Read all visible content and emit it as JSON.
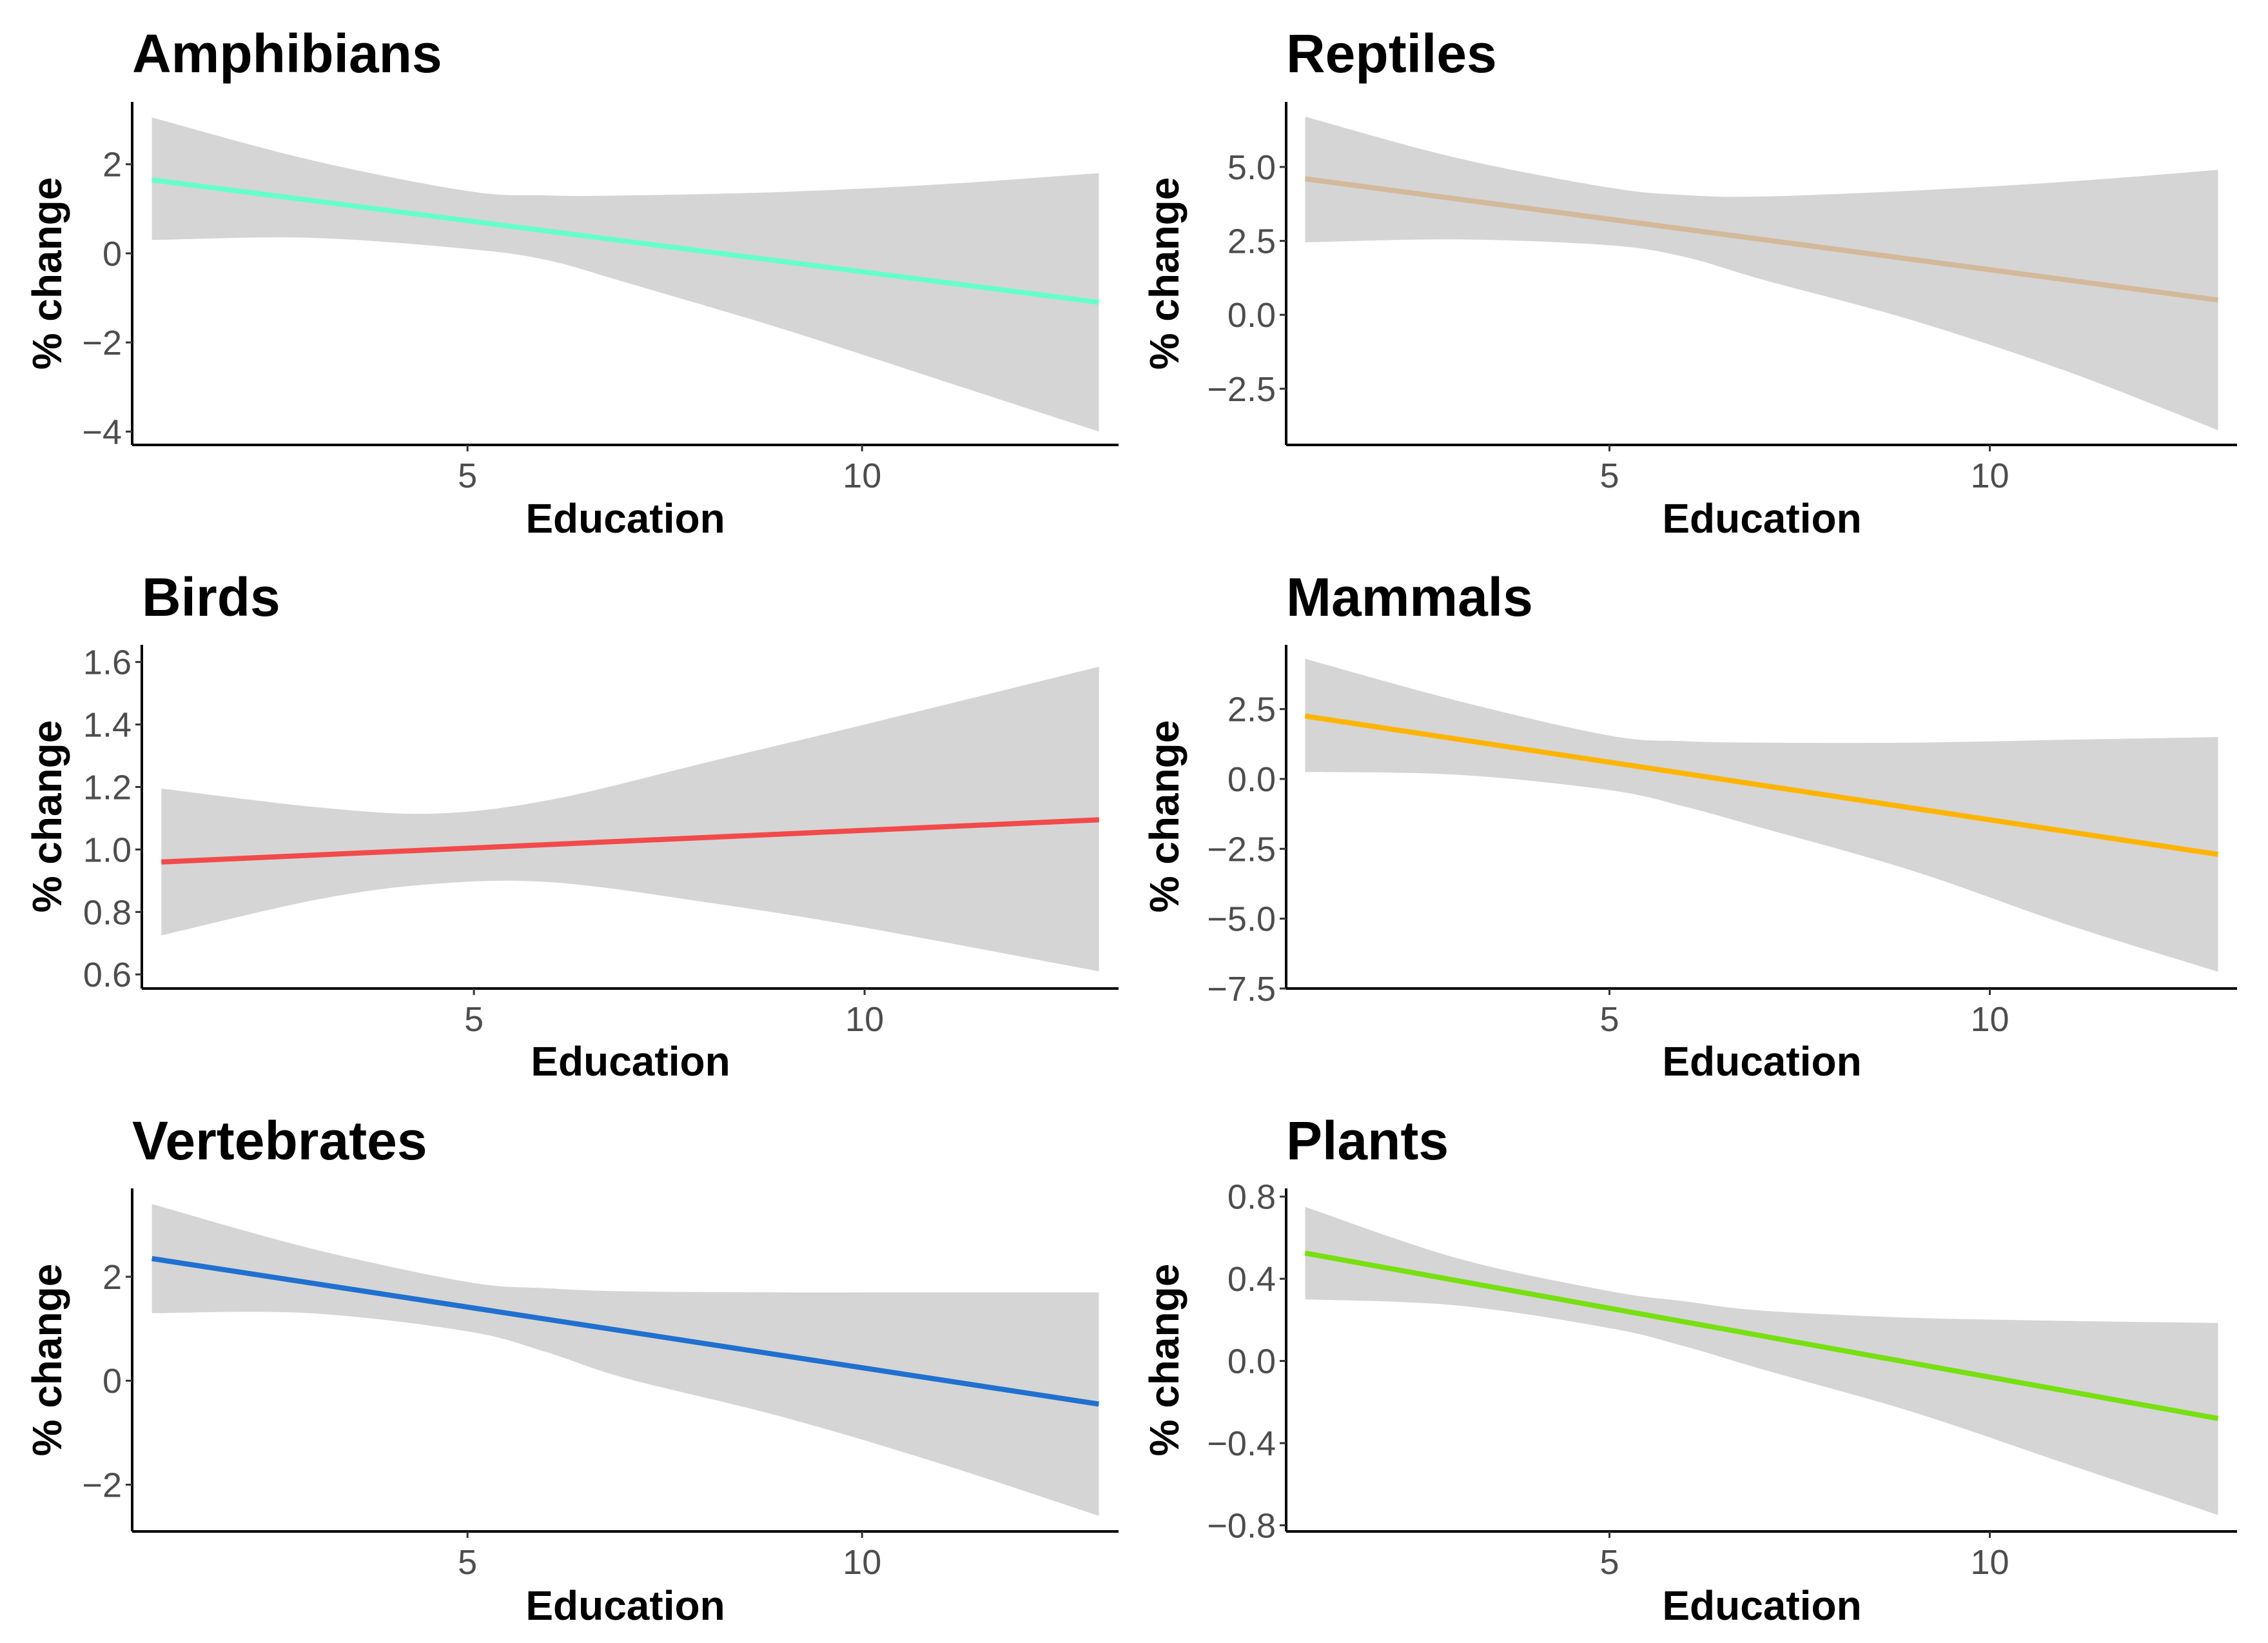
{
  "ribbon_color": "#d5d5d5",
  "chart_data": [
    {
      "type": "line",
      "title": "Amphibians",
      "xlabel": "Education",
      "ylabel": "% change",
      "xlim": [
        0.75,
        13.25
      ],
      "ylim": [
        -4.3,
        3.4
      ],
      "xticks": [
        5,
        10
      ],
      "yticks": [
        {
          "value": 2,
          "label": "2"
        },
        {
          "value": 0,
          "label": "0"
        },
        {
          "value": -2,
          "label": "−2"
        },
        {
          "value": -4,
          "label": "−4"
        }
      ],
      "color": "#66ffcc",
      "fit": {
        "x": [
          1,
          13
        ],
        "y": [
          1.65,
          -1.1
        ]
      },
      "ci": {
        "x": [
          1,
          3,
          5,
          6,
          7,
          9,
          11,
          13
        ],
        "upper": [
          3.05,
          2.1,
          1.4,
          1.3,
          1.3,
          1.38,
          1.55,
          1.8
        ],
        "lower": [
          0.3,
          0.35,
          0.1,
          -0.15,
          -0.65,
          -1.7,
          -2.85,
          -4.0
        ]
      }
    },
    {
      "type": "line",
      "title": "Reptiles",
      "xlabel": "Education",
      "ylabel": "% change",
      "xlim": [
        0.75,
        13.25
      ],
      "ylim": [
        -4.4,
        7.2
      ],
      "xticks": [
        5,
        10
      ],
      "yticks": [
        {
          "value": 5,
          "label": "5.0"
        },
        {
          "value": 2.5,
          "label": "2.5"
        },
        {
          "value": 0,
          "label": "0.0"
        },
        {
          "value": -2.5,
          "label": "−2.5"
        }
      ],
      "color": "#d4b89a",
      "fit": {
        "x": [
          1,
          13
        ],
        "y": [
          4.6,
          0.5
        ]
      },
      "ci": {
        "x": [
          1,
          3,
          5,
          6,
          7,
          9,
          11,
          13
        ],
        "upper": [
          6.7,
          5.3,
          4.3,
          4.05,
          4.0,
          4.2,
          4.5,
          4.9
        ],
        "lower": [
          2.45,
          2.55,
          2.35,
          1.95,
          1.2,
          -0.2,
          -1.9,
          -3.9
        ]
      }
    },
    {
      "type": "line",
      "title": "Birds",
      "xlabel": "Education",
      "ylabel": "% change",
      "xlim": [
        0.75,
        13.25
      ],
      "ylim": [
        0.555,
        1.655
      ],
      "xticks": [
        5,
        10
      ],
      "yticks": [
        {
          "value": 1.6,
          "label": "1.6"
        },
        {
          "value": 1.4,
          "label": "1.4"
        },
        {
          "value": 1.2,
          "label": "1.2"
        },
        {
          "value": 1.0,
          "label": "1.0"
        },
        {
          "value": 0.8,
          "label": "0.8"
        },
        {
          "value": 0.6,
          "label": "0.6"
        }
      ],
      "color": "#f24a4a",
      "fit": {
        "x": [
          1,
          13
        ],
        "y": [
          0.96,
          1.095
        ]
      },
      "ci": {
        "x": [
          1,
          3,
          4.5,
          6,
          8,
          10,
          13
        ],
        "upper": [
          1.195,
          1.135,
          1.115,
          1.16,
          1.28,
          1.4,
          1.585
        ],
        "lower": [
          0.725,
          0.84,
          0.89,
          0.895,
          0.83,
          0.75,
          0.61
        ]
      }
    },
    {
      "type": "line",
      "title": "Mammals",
      "xlabel": "Education",
      "ylabel": "% change",
      "xlim": [
        0.75,
        13.25
      ],
      "ylim": [
        -7.5,
        4.8
      ],
      "xticks": [
        5,
        10
      ],
      "yticks": [
        {
          "value": 2.5,
          "label": "2.5"
        },
        {
          "value": 0,
          "label": "0.0"
        },
        {
          "value": -2.5,
          "label": "−2.5"
        },
        {
          "value": -5,
          "label": "−5.0"
        },
        {
          "value": -7.5,
          "label": "−7.5"
        }
      ],
      "color": "#ffb400",
      "fit": {
        "x": [
          1,
          13
        ],
        "y": [
          2.25,
          -2.7
        ]
      },
      "ci": {
        "x": [
          1,
          3,
          5,
          6,
          7,
          9,
          11,
          13
        ],
        "upper": [
          4.3,
          2.8,
          1.55,
          1.35,
          1.3,
          1.3,
          1.4,
          1.5
        ],
        "lower": [
          0.25,
          0.15,
          -0.4,
          -1.0,
          -1.75,
          -3.3,
          -5.2,
          -6.9
        ]
      }
    },
    {
      "type": "line",
      "title": "Vertebrates",
      "xlabel": "Education",
      "ylabel": "% change",
      "xlim": [
        0.75,
        13.25
      ],
      "ylim": [
        -2.9,
        3.7
      ],
      "xticks": [
        5,
        10
      ],
      "yticks": [
        {
          "value": 2,
          "label": "2"
        },
        {
          "value": 0,
          "label": "0"
        },
        {
          "value": -2,
          "label": "−2"
        }
      ],
      "color": "#2070d0",
      "fit": {
        "x": [
          1,
          13
        ],
        "y": [
          2.35,
          -0.45
        ]
      },
      "ci": {
        "x": [
          1,
          3,
          5,
          6,
          7,
          9,
          11,
          13
        ],
        "upper": [
          3.4,
          2.55,
          1.9,
          1.78,
          1.72,
          1.7,
          1.7,
          1.7
        ],
        "lower": [
          1.3,
          1.3,
          0.95,
          0.55,
          0.05,
          -0.7,
          -1.6,
          -2.6
        ]
      }
    },
    {
      "type": "line",
      "title": "Plants",
      "xlabel": "Education",
      "ylabel": "% change",
      "xlim": [
        0.75,
        13.25
      ],
      "ylim": [
        -0.83,
        0.84
      ],
      "xticks": [
        5,
        10
      ],
      "yticks": [
        {
          "value": 0.8,
          "label": "0.8"
        },
        {
          "value": 0.4,
          "label": "0.4"
        },
        {
          "value": 0,
          "label": "0.0"
        },
        {
          "value": -0.4,
          "label": "−0.4"
        },
        {
          "value": -0.8,
          "label": "−0.8"
        }
      ],
      "color": "#77e010",
      "fit": {
        "x": [
          1,
          13
        ],
        "y": [
          0.525,
          -0.28
        ]
      },
      "ci": {
        "x": [
          1,
          3,
          5,
          6,
          7,
          9,
          11,
          13
        ],
        "upper": [
          0.75,
          0.5,
          0.34,
          0.29,
          0.245,
          0.21,
          0.195,
          0.185
        ],
        "lower": [
          0.3,
          0.27,
          0.16,
          0.07,
          -0.04,
          -0.25,
          -0.5,
          -0.75
        ]
      }
    }
  ]
}
